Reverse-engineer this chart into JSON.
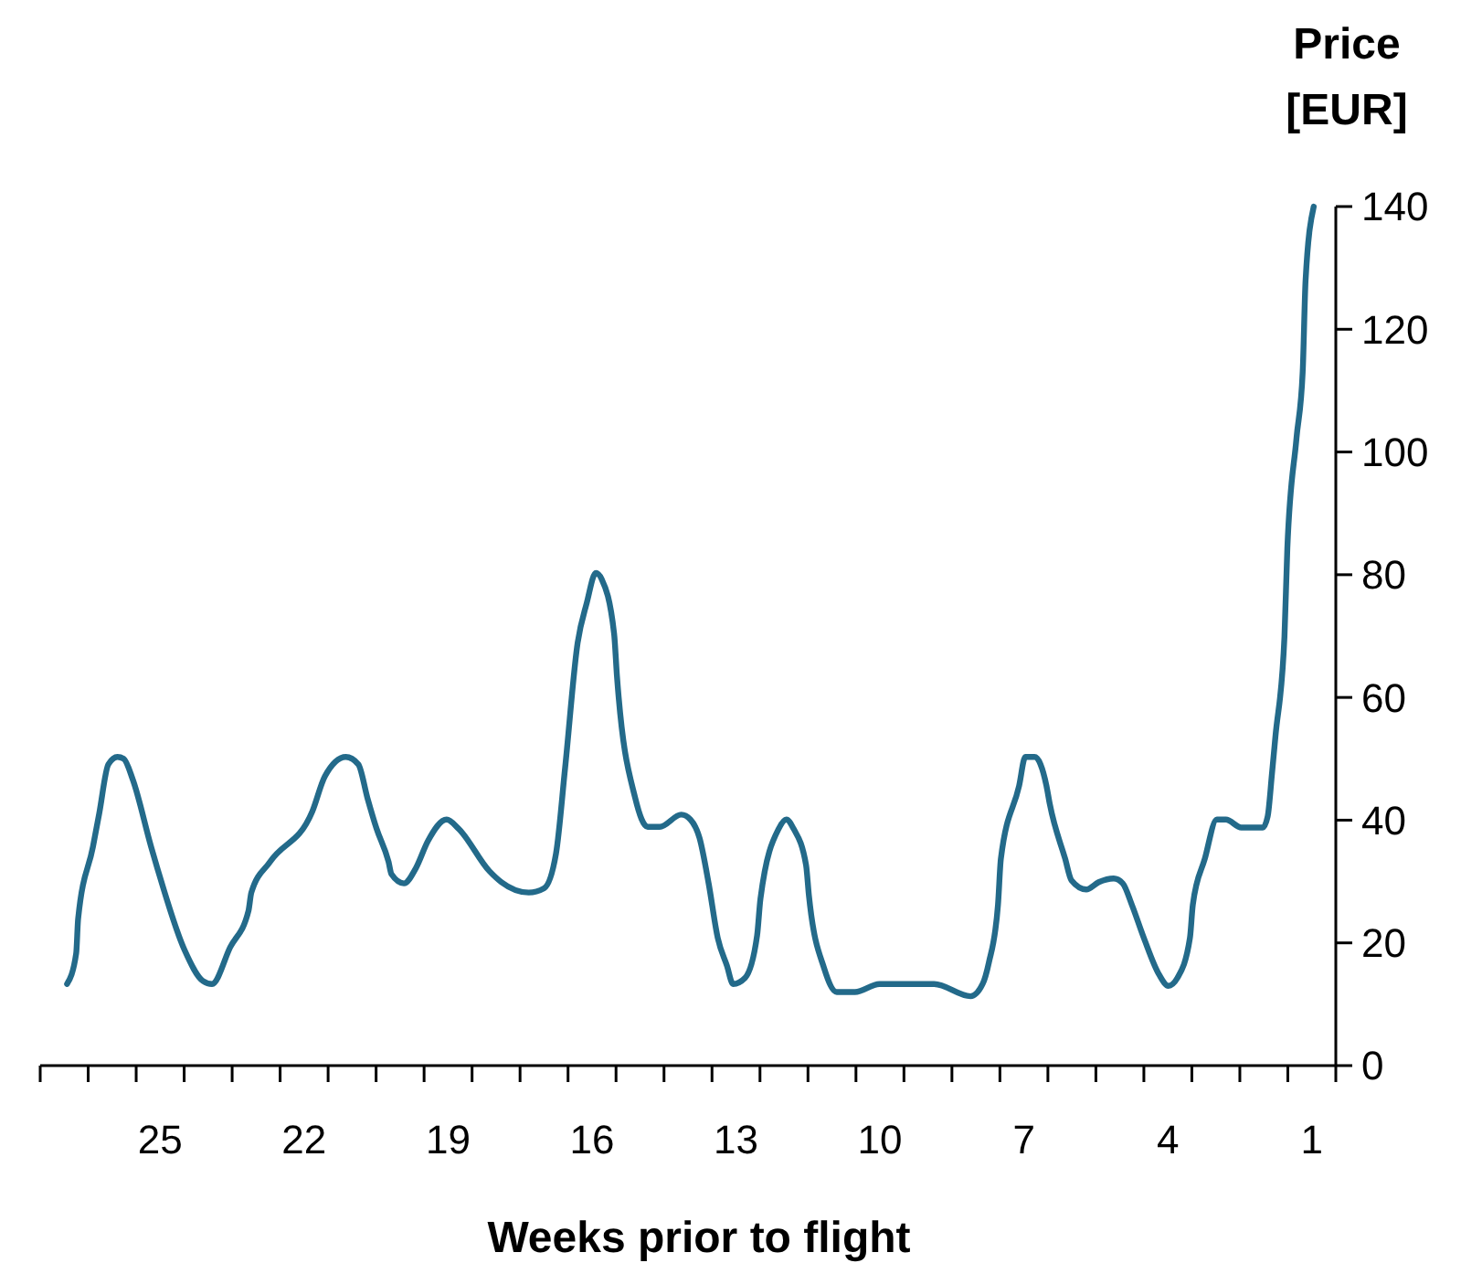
{
  "chart_data": {
    "type": "line",
    "xlabel": "Weeks prior to flight",
    "ylabel": "Price\n[EUR]",
    "xlim": [
      27.5,
      0.5
    ],
    "xticks": [
      {
        "value": 27.5,
        "label": null
      },
      {
        "value": 26.5,
        "label": null
      },
      {
        "value": 25.5,
        "label": null
      },
      {
        "value": 24.5,
        "label": null
      },
      {
        "value": 23.5,
        "label": null
      },
      {
        "value": 22.5,
        "label": null
      },
      {
        "value": 21.5,
        "label": null
      },
      {
        "value": 20.5,
        "label": null
      },
      {
        "value": 19.5,
        "label": null
      },
      {
        "value": 18.5,
        "label": null
      },
      {
        "value": 17.5,
        "label": null
      },
      {
        "value": 16.5,
        "label": null
      },
      {
        "value": 15.5,
        "label": null
      },
      {
        "value": 14.5,
        "label": null
      },
      {
        "value": 13.5,
        "label": null
      },
      {
        "value": 12.5,
        "label": null
      },
      {
        "value": 11.5,
        "label": null
      },
      {
        "value": 10.5,
        "label": null
      },
      {
        "value": 9.5,
        "label": null
      },
      {
        "value": 8.5,
        "label": null
      },
      {
        "value": 7.5,
        "label": null
      },
      {
        "value": 6.5,
        "label": null
      },
      {
        "value": 5.5,
        "label": null
      },
      {
        "value": 4.5,
        "label": null
      },
      {
        "value": 3.5,
        "label": null
      },
      {
        "value": 2.5,
        "label": null
      },
      {
        "value": 1.5,
        "label": null
      },
      {
        "value": 0.5,
        "label": null
      },
      25,
      22,
      19,
      16,
      13,
      10,
      7,
      4,
      1
    ],
    "ylim": [
      0,
      140
    ],
    "yticks": [
      0,
      20,
      40,
      60,
      80,
      100,
      120,
      140
    ],
    "marker": "none",
    "line_style": "solid",
    "series": [
      {
        "color": "#236a8a",
        "x": [
          26.94,
          26.75,
          26.71,
          26.4,
          26.27,
          26.08,
          25.89,
          25.76,
          25.57,
          25.19,
          25.06,
          24.49,
          24.11,
          23.92,
          23.54,
          23.16,
          23.1,
          22.71,
          21.83,
          21.57,
          21.13,
          20.87,
          20.68,
          20.49,
          20.24,
          20.18,
          19.92,
          19.67,
          19.42,
          19.03,
          18.78,
          18.14,
          17.89,
          17.32,
          17.0,
          16.75,
          16.56,
          16.3,
          16.11,
          15.92,
          15.8,
          15.54,
          15.48,
          15.1,
          14.84,
          14.59,
          14.14,
          13.95,
          13.76,
          13.57,
          13.38,
          13.19,
          13.06,
          12.81,
          12.56,
          12.49,
          12.11,
          11.95,
          11.8,
          11.54,
          11.48,
          11.16,
          10.9,
          10.52,
          10.01,
          8.87,
          8.11,
          7.86,
          7.73,
          7.54,
          7.48,
          7.1,
          6.97,
          6.78,
          6.53,
          6.46,
          6.14,
          6.01,
          5.7,
          5.44,
          5.13,
          4.94,
          4.75,
          4.5,
          4.18,
          3.99,
          3.8,
          3.54,
          3.48,
          3.23,
          2.98,
          2.79,
          2.47,
          2.02,
          1.92,
          1.83,
          1.76,
          1.57,
          1.51,
          1.32,
          1.19,
          1.13,
          0.96
        ],
        "values": [
          13.3,
          18.3,
          23.9,
          35.7,
          41.1,
          49.1,
          50.3,
          50,
          46.6,
          35.7,
          32.2,
          18.8,
          13.8,
          13.3,
          19.3,
          25.2,
          28.2,
          33.2,
          41.4,
          47.1,
          50.3,
          49.1,
          43.6,
          38.6,
          33.2,
          31.2,
          29.7,
          32.2,
          36.6,
          40.1,
          38.6,
          31.7,
          29.9,
          28.2,
          28.9,
          34.6,
          48.6,
          68.9,
          75.4,
          80.3,
          79.3,
          70.4,
          63.4,
          43.6,
          38.9,
          38.9,
          40.9,
          40.1,
          37.1,
          29.7,
          20.8,
          16.3,
          13.3,
          14.3,
          21.2,
          27.2,
          38.6,
          40.1,
          38.6,
          32.7,
          27.7,
          15.8,
          12.0,
          12.0,
          13.3,
          13.3,
          11.3,
          13.3,
          16.8,
          26.2,
          33.7,
          45.6,
          50.3,
          50.3,
          45.6,
          42.6,
          33.7,
          30.2,
          28.7,
          29.9,
          30.5,
          29.7,
          26.2,
          20.8,
          14.8,
          13.0,
          14.3,
          20.8,
          26.2,
          33.7,
          40.1,
          40.1,
          38.8,
          38.8,
          40.6,
          47.6,
          53.5,
          69.9,
          84.3,
          102.2,
          113.1,
          128.0,
          140
        ]
      }
    ]
  }
}
